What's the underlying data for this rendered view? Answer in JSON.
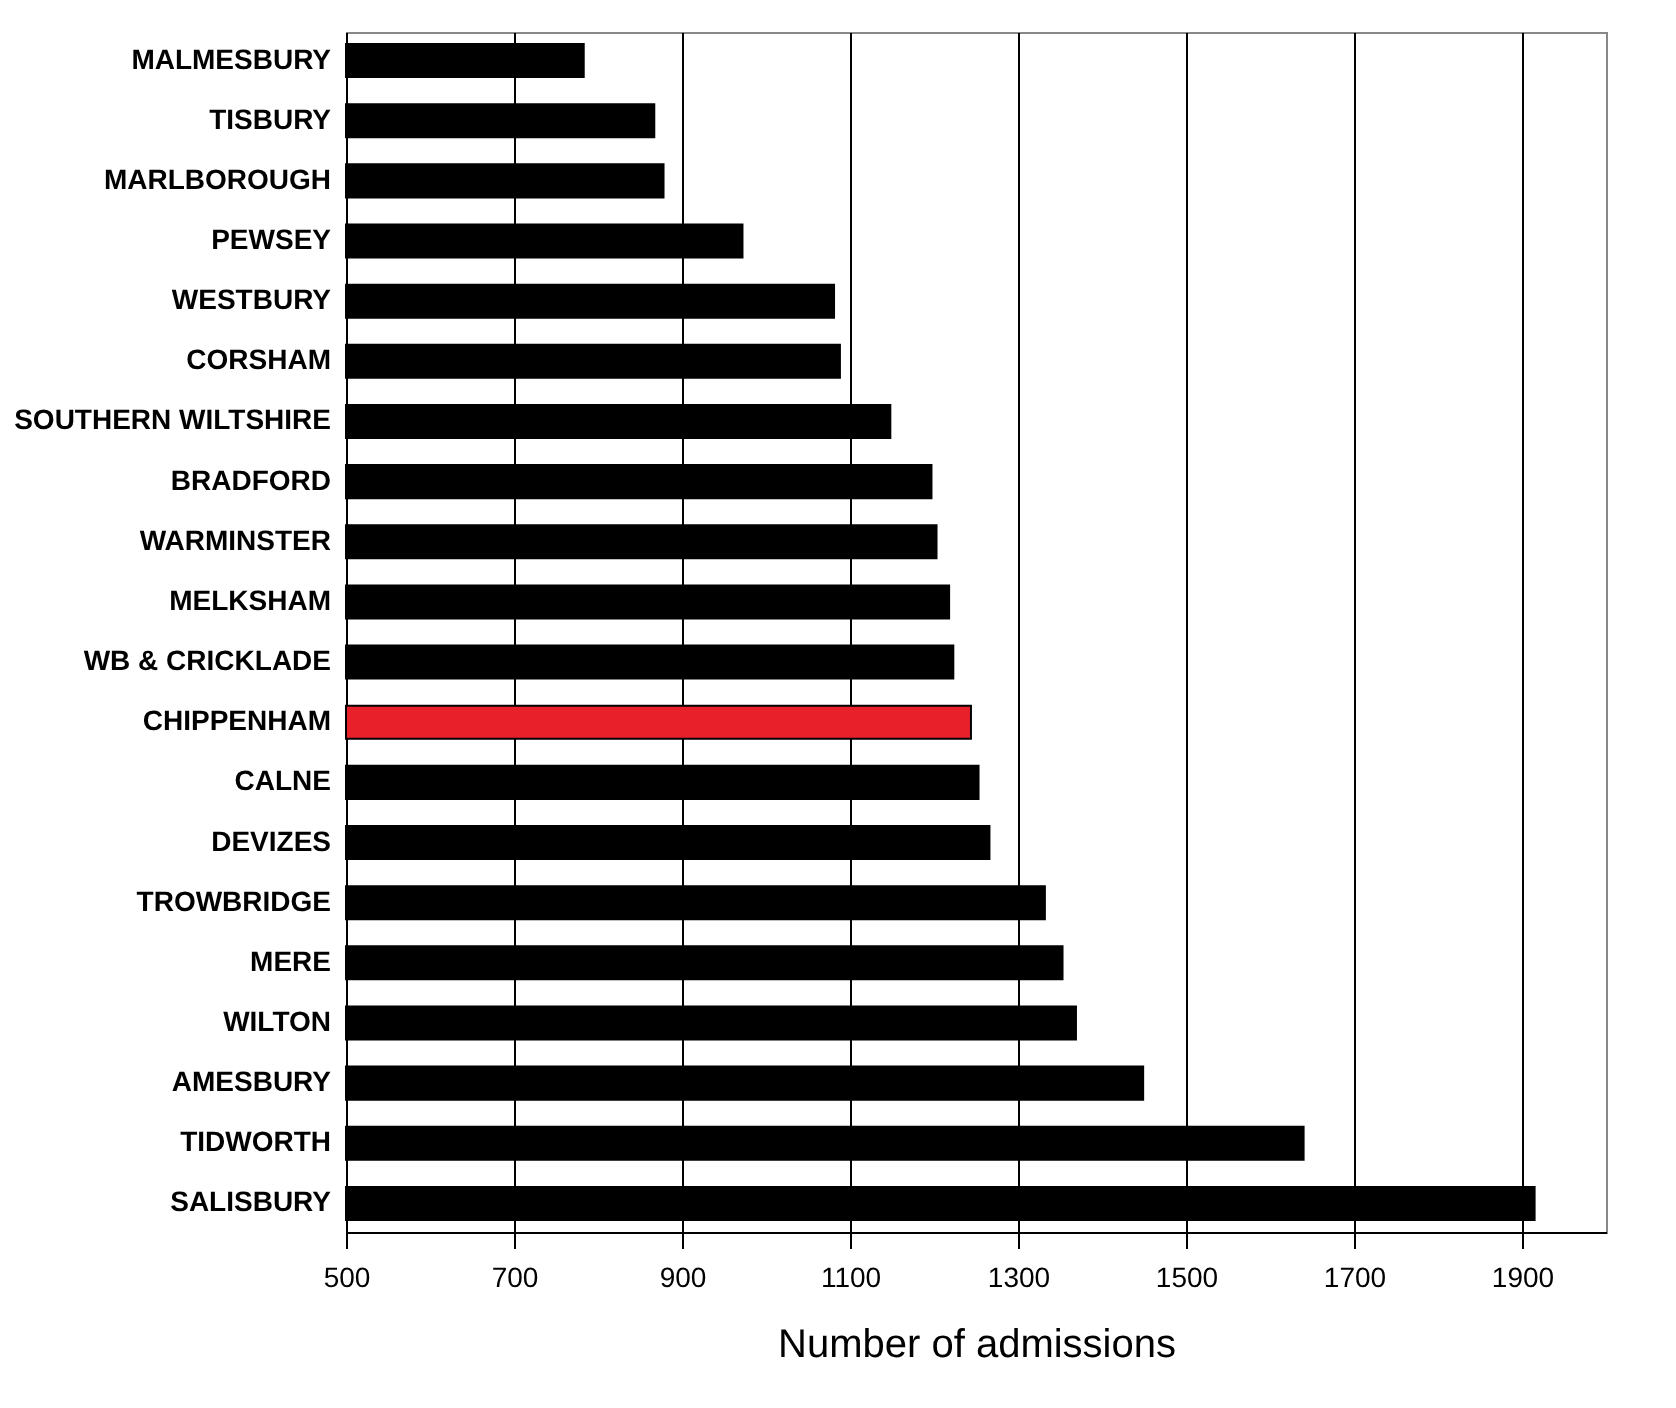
{
  "chart_data": {
    "type": "bar",
    "orientation": "horizontal",
    "xlabel": "Number of admissions",
    "categories": [
      "MALMESBURY",
      "TISBURY",
      "MARLBOROUGH",
      "PEWSEY",
      "WESTBURY",
      "CORSHAM",
      "SOUTHERN WILTSHIRE",
      "BRADFORD",
      "WARMINSTER",
      "MELKSHAM",
      "WB & CRICKLADE",
      "CHIPPENHAM",
      "CALNE",
      "DEVIZES",
      "TROWBRIDGE",
      "MERE",
      "WILTON",
      "AMESBURY",
      "TIDWORTH",
      "SALISBURY"
    ],
    "values": [
      783,
      867,
      878,
      972,
      1081,
      1088,
      1148,
      1197,
      1203,
      1218,
      1223,
      1244,
      1253,
      1266,
      1332,
      1353,
      1369,
      1449,
      1640,
      1915
    ],
    "colors": [
      "#000000",
      "#000000",
      "#000000",
      "#000000",
      "#000000",
      "#000000",
      "#000000",
      "#000000",
      "#000000",
      "#000000",
      "#000000",
      "#e8202a",
      "#000000",
      "#000000",
      "#000000",
      "#000000",
      "#000000",
      "#000000",
      "#000000",
      "#000000"
    ],
    "xlim": [
      500,
      2000
    ],
    "xticks": [
      500,
      700,
      900,
      1100,
      1300,
      1500,
      1700,
      1900
    ],
    "grid": "x"
  }
}
